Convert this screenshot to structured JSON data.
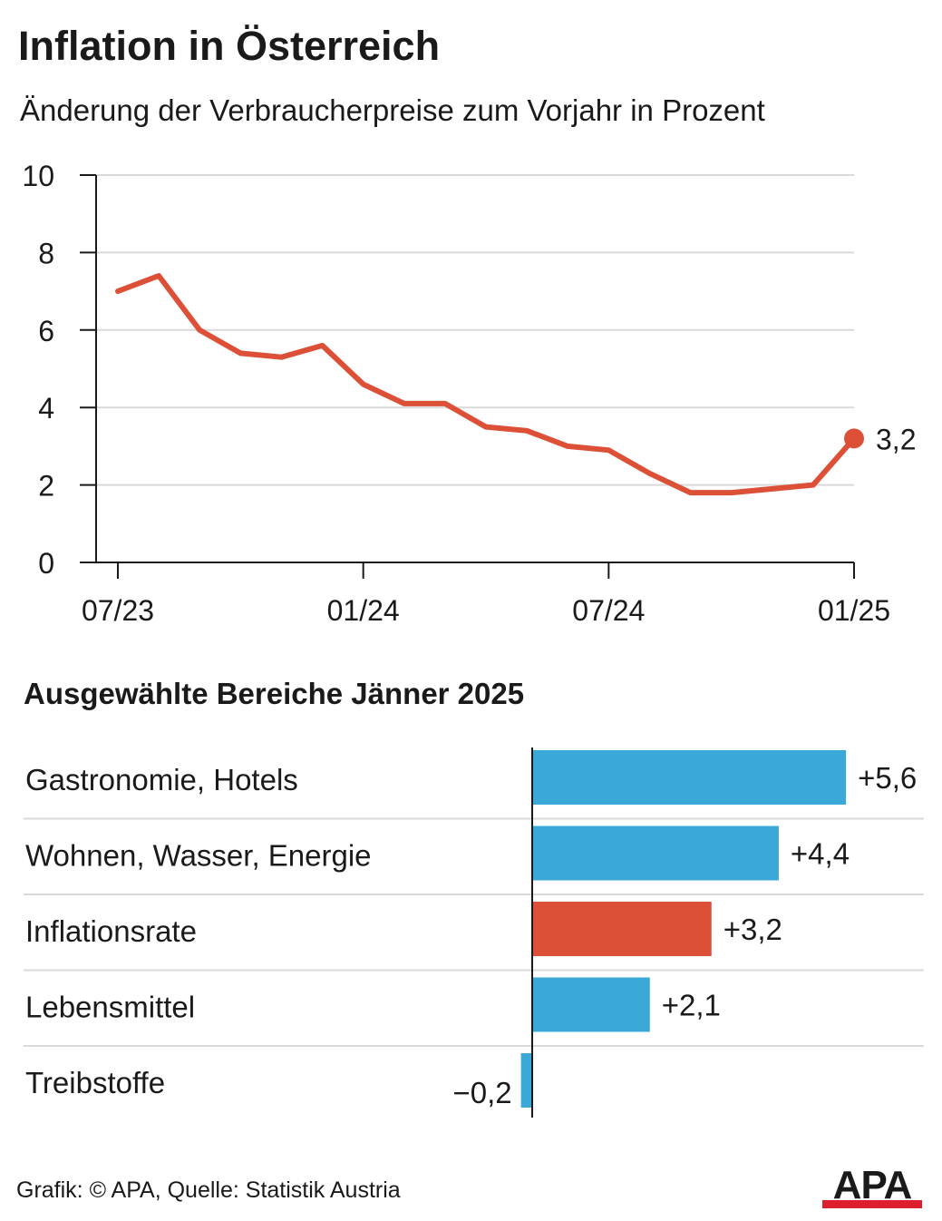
{
  "header": {
    "title": "Inflation in Österreich",
    "subtitle": "Änderung der Verbraucherpreise zum Vorjahr in Prozent"
  },
  "chart_data": [
    {
      "type": "line",
      "title": "Inflation in Österreich",
      "subtitle": "Änderung der Verbraucherpreise zum Vorjahr in Prozent",
      "ylim": [
        0,
        10
      ],
      "yticks": [
        "0",
        "2",
        "4",
        "6",
        "8",
        "10"
      ],
      "ytick_values": [
        0,
        2,
        4,
        6,
        8,
        10
      ],
      "xtick_labels": [
        "07/23",
        "01/24",
        "07/24",
        "01/25"
      ],
      "xtick_indices": [
        0,
        6,
        12,
        18
      ],
      "grid": true,
      "series": [
        {
          "name": "Inflationsrate",
          "color": "#dd5038",
          "x": [
            "07/23",
            "08/23",
            "09/23",
            "10/23",
            "11/23",
            "12/23",
            "01/24",
            "02/24",
            "03/24",
            "04/24",
            "05/24",
            "06/24",
            "07/24",
            "08/24",
            "09/24",
            "10/24",
            "11/24",
            "12/24",
            "01/25"
          ],
          "values": [
            7.0,
            7.4,
            6.0,
            5.4,
            5.3,
            5.6,
            4.6,
            4.1,
            4.1,
            3.5,
            3.4,
            3.0,
            2.9,
            2.3,
            1.8,
            1.8,
            1.9,
            2.0,
            3.2
          ]
        }
      ],
      "end_label": "3,2"
    },
    {
      "type": "bar",
      "orientation": "horizontal",
      "title": "Ausgewählte Bereiche Jänner 2025",
      "categories": [
        "Gastronomie, Hotels",
        "Wohnen, Wasser, Energie",
        "Inflationsrate",
        "Lebensmittel",
        "Treibstoffe"
      ],
      "values": [
        5.6,
        4.4,
        3.2,
        2.1,
        -0.2
      ],
      "value_labels": [
        "+5,6",
        "+4,4",
        "+3,2",
        "+2,1",
        "−0,2"
      ],
      "colors": [
        "#3aa9d8",
        "#3aa9d8",
        "#dd5038",
        "#3aa9d8",
        "#3aa9d8"
      ]
    }
  ],
  "footer": {
    "source": "Grafik: © APA, Quelle: Statistik Austria",
    "logo_text": "APA"
  }
}
